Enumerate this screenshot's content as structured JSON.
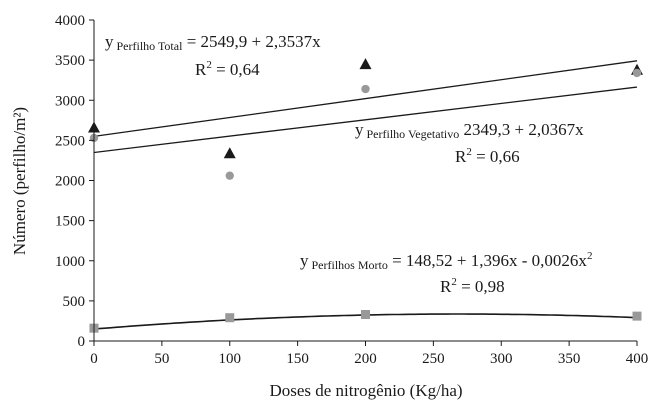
{
  "chart_data": {
    "type": "scatter",
    "xlabel": "Doses de nitrogênio (Kg/ha)",
    "ylabel": "Número (perfilho/m²)",
    "xlim": [
      0,
      400
    ],
    "ylim": [
      0,
      4000
    ],
    "xticks": [
      0,
      50,
      100,
      150,
      200,
      250,
      300,
      350,
      400
    ],
    "yticks": [
      0,
      500,
      1000,
      1500,
      2000,
      2500,
      3000,
      3500,
      4000
    ],
    "grid": false,
    "series": [
      {
        "marker": "triangle",
        "color": "#1a1a1a",
        "x": [
          0,
          100,
          200,
          400
        ],
        "y": [
          2660,
          2340,
          3450,
          3380
        ],
        "fit": {
          "type": "linear",
          "intercept": 2549.9,
          "slope": 2.3537
        }
      },
      {
        "marker": "circle",
        "color": "#999999",
        "x": [
          0,
          100,
          200,
          400
        ],
        "y": [
          2530,
          2060,
          3140,
          3340
        ],
        "fit": {
          "type": "linear",
          "intercept": 2349.3,
          "slope": 2.0367
        }
      },
      {
        "marker": "square",
        "color": "#999999",
        "x": [
          0,
          100,
          200,
          400
        ],
        "y": [
          160,
          290,
          330,
          310
        ],
        "fit": {
          "type": "quadratic",
          "c0": 148.52,
          "c1": 1.396,
          "c2": -0.0026
        }
      }
    ],
    "annotations": {
      "total": {
        "y": "y",
        "sub": "Perfilho Total",
        "rhs": " = 2549,9 + 2,3537x",
        "r2_lhs": "R",
        "r2_sup": "2",
        "r2_rhs": " = 0,64"
      },
      "vegetativo": {
        "y": "y",
        "sub": "Perfilho Vegetativo",
        "rhs": "  2349,3 + 2,0367x",
        "r2_lhs": "R",
        "r2_sup": "2",
        "r2_rhs": " = 0,66"
      },
      "morto": {
        "y": "y",
        "sub": "Perfilhos Morto",
        "rhs": " = 148,52 + 1,396x  - 0,0026x",
        "rhs_sup": "2",
        "r2_lhs": "R",
        "r2_sup": "2",
        "r2_rhs": " = 0,98"
      }
    }
  }
}
